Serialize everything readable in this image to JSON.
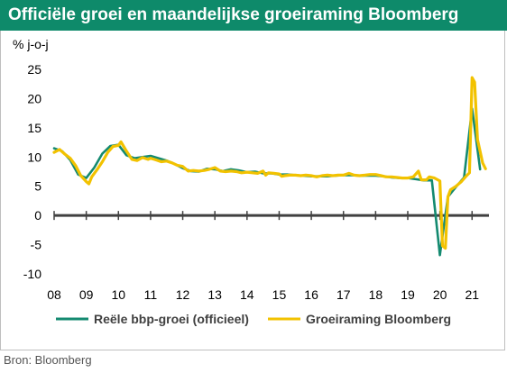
{
  "title": "Officiële groei en maandelijkse groeiraming Bloomberg",
  "source": "Bron: Bloomberg",
  "colors": {
    "title_bg": "#0e8a6a",
    "series_official": "#148a70",
    "series_bloomberg": "#f2c200",
    "zero_line": "#404040"
  },
  "chart_data": {
    "type": "line",
    "title": "Officiële groei en maandelijkse groeiraming Bloomberg",
    "ylabel": "% j-o-j",
    "xlabel": "",
    "ylim": [
      -10,
      25
    ],
    "yticks": [
      25,
      20,
      15,
      10,
      5,
      0,
      -5,
      -10
    ],
    "xlim": [
      2008,
      2021.75
    ],
    "xticks": [
      {
        "x": 2008,
        "label": "08"
      },
      {
        "x": 2009,
        "label": "09"
      },
      {
        "x": 2010,
        "label": "10"
      },
      {
        "x": 2011,
        "label": "11"
      },
      {
        "x": 2012,
        "label": "12"
      },
      {
        "x": 2013,
        "label": "13"
      },
      {
        "x": 2014,
        "label": "14"
      },
      {
        "x": 2015,
        "label": "15"
      },
      {
        "x": 2016,
        "label": "16"
      },
      {
        "x": 2017,
        "label": "17"
      },
      {
        "x": 2018,
        "label": "18"
      },
      {
        "x": 2019,
        "label": "19"
      },
      {
        "x": 2020,
        "label": "20"
      },
      {
        "x": 2021,
        "label": "21"
      }
    ],
    "legend_position": "bottom",
    "grid": false,
    "series": [
      {
        "name": "Reële bbp-groei (officieel)",
        "color": "#148a70",
        "points": [
          [
            2008.0,
            11.5
          ],
          [
            2008.25,
            11.0
          ],
          [
            2008.5,
            9.5
          ],
          [
            2008.75,
            7.0
          ],
          [
            2009.0,
            6.4
          ],
          [
            2009.25,
            8.2
          ],
          [
            2009.5,
            10.6
          ],
          [
            2009.75,
            11.9
          ],
          [
            2010.0,
            12.1
          ],
          [
            2010.25,
            10.3
          ],
          [
            2010.5,
            9.8
          ],
          [
            2010.75,
            10.0
          ],
          [
            2011.0,
            10.2
          ],
          [
            2011.25,
            9.8
          ],
          [
            2011.5,
            9.4
          ],
          [
            2011.75,
            8.8
          ],
          [
            2012.0,
            8.1
          ],
          [
            2012.25,
            7.6
          ],
          [
            2012.5,
            7.5
          ],
          [
            2012.75,
            8.0
          ],
          [
            2013.0,
            7.9
          ],
          [
            2013.25,
            7.6
          ],
          [
            2013.5,
            7.9
          ],
          [
            2013.75,
            7.7
          ],
          [
            2014.0,
            7.4
          ],
          [
            2014.25,
            7.5
          ],
          [
            2014.5,
            7.2
          ],
          [
            2014.75,
            7.2
          ],
          [
            2015.0,
            7.0
          ],
          [
            2015.25,
            7.0
          ],
          [
            2015.5,
            6.9
          ],
          [
            2015.75,
            6.8
          ],
          [
            2016.0,
            6.7
          ],
          [
            2016.25,
            6.7
          ],
          [
            2016.5,
            6.7
          ],
          [
            2016.75,
            6.8
          ],
          [
            2017.0,
            6.9
          ],
          [
            2017.25,
            6.9
          ],
          [
            2017.5,
            6.8
          ],
          [
            2017.75,
            6.8
          ],
          [
            2018.0,
            6.8
          ],
          [
            2018.25,
            6.7
          ],
          [
            2018.5,
            6.5
          ],
          [
            2018.75,
            6.4
          ],
          [
            2019.0,
            6.4
          ],
          [
            2019.25,
            6.2
          ],
          [
            2019.5,
            6.0
          ],
          [
            2019.75,
            6.0
          ],
          [
            2020.0,
            -6.8
          ],
          [
            2020.25,
            3.2
          ],
          [
            2020.5,
            4.9
          ],
          [
            2020.75,
            6.5
          ],
          [
            2021.0,
            18.3
          ],
          [
            2021.25,
            7.9
          ]
        ]
      },
      {
        "name": "Groeiraming Bloomberg",
        "color": "#f2c200",
        "points": [
          [
            2008.0,
            10.8
          ],
          [
            2008.17,
            11.3
          ],
          [
            2008.33,
            10.5
          ],
          [
            2008.5,
            9.8
          ],
          [
            2008.67,
            8.5
          ],
          [
            2008.83,
            6.8
          ],
          [
            2009.0,
            5.8
          ],
          [
            2009.08,
            5.4
          ],
          [
            2009.17,
            6.6
          ],
          [
            2009.33,
            7.8
          ],
          [
            2009.5,
            9.2
          ],
          [
            2009.67,
            10.8
          ],
          [
            2009.83,
            11.8
          ],
          [
            2010.0,
            12.0
          ],
          [
            2010.08,
            12.6
          ],
          [
            2010.25,
            11.0
          ],
          [
            2010.42,
            9.6
          ],
          [
            2010.58,
            9.4
          ],
          [
            2010.75,
            9.9
          ],
          [
            2010.92,
            9.6
          ],
          [
            2011.0,
            9.8
          ],
          [
            2011.17,
            9.5
          ],
          [
            2011.33,
            9.2
          ],
          [
            2011.5,
            9.3
          ],
          [
            2011.67,
            9.0
          ],
          [
            2011.83,
            8.6
          ],
          [
            2012.0,
            8.4
          ],
          [
            2012.17,
            7.6
          ],
          [
            2012.33,
            7.7
          ],
          [
            2012.5,
            7.6
          ],
          [
            2012.67,
            7.7
          ],
          [
            2012.83,
            7.9
          ],
          [
            2013.0,
            8.2
          ],
          [
            2013.17,
            7.6
          ],
          [
            2013.33,
            7.5
          ],
          [
            2013.5,
            7.6
          ],
          [
            2013.67,
            7.5
          ],
          [
            2013.83,
            7.3
          ],
          [
            2014.0,
            7.4
          ],
          [
            2014.17,
            7.3
          ],
          [
            2014.33,
            7.2
          ],
          [
            2014.5,
            7.6
          ],
          [
            2014.58,
            6.9
          ],
          [
            2014.67,
            7.3
          ],
          [
            2014.83,
            7.2
          ],
          [
            2015.0,
            7.1
          ],
          [
            2015.08,
            6.7
          ],
          [
            2015.17,
            6.8
          ],
          [
            2015.33,
            6.9
          ],
          [
            2015.5,
            6.9
          ],
          [
            2015.67,
            6.8
          ],
          [
            2015.83,
            6.9
          ],
          [
            2016.0,
            6.8
          ],
          [
            2016.17,
            6.6
          ],
          [
            2016.33,
            6.8
          ],
          [
            2016.5,
            6.9
          ],
          [
            2016.67,
            6.8
          ],
          [
            2016.83,
            6.9
          ],
          [
            2017.0,
            6.9
          ],
          [
            2017.17,
            7.2
          ],
          [
            2017.33,
            6.9
          ],
          [
            2017.5,
            6.8
          ],
          [
            2017.67,
            6.9
          ],
          [
            2017.83,
            7.0
          ],
          [
            2018.0,
            7.0
          ],
          [
            2018.17,
            6.8
          ],
          [
            2018.33,
            6.6
          ],
          [
            2018.5,
            6.6
          ],
          [
            2018.67,
            6.5
          ],
          [
            2018.83,
            6.4
          ],
          [
            2019.0,
            6.4
          ],
          [
            2019.17,
            6.6
          ],
          [
            2019.33,
            7.6
          ],
          [
            2019.42,
            6.1
          ],
          [
            2019.58,
            6.1
          ],
          [
            2019.67,
            6.6
          ],
          [
            2019.83,
            6.4
          ],
          [
            2020.0,
            5.9
          ],
          [
            2020.08,
            -5.2
          ],
          [
            2020.17,
            -5.6
          ],
          [
            2020.25,
            3.2
          ],
          [
            2020.33,
            4.4
          ],
          [
            2020.5,
            5.0
          ],
          [
            2020.67,
            5.8
          ],
          [
            2020.83,
            6.8
          ],
          [
            2020.92,
            7.3
          ],
          [
            2021.0,
            23.6
          ],
          [
            2021.08,
            22.8
          ],
          [
            2021.17,
            13.0
          ],
          [
            2021.33,
            9.0
          ],
          [
            2021.42,
            8.0
          ]
        ]
      }
    ]
  }
}
